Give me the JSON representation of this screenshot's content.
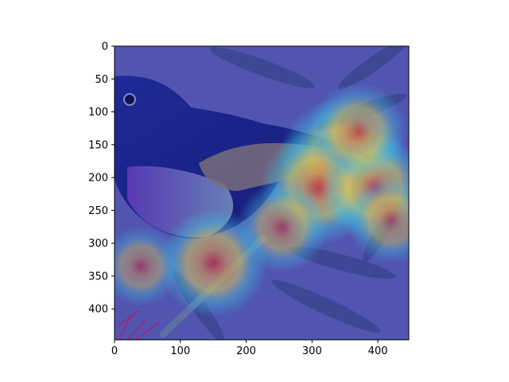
{
  "figure": {
    "kind": "image display with heatmap overlay (Grad-CAM style)",
    "background_scene": "bird perched on a branch among leaves, tinted blue",
    "overlay_colormap": "jet",
    "overlay_alpha": 0.5
  },
  "chart_data": {
    "type": "heatmap",
    "title": "",
    "xlabel": "",
    "ylabel": "",
    "xlim": [
      0,
      447
    ],
    "ylim": [
      447,
      0
    ],
    "x_ticks": [
      0,
      100,
      200,
      300,
      400
    ],
    "y_ticks": [
      0,
      50,
      100,
      150,
      200,
      250,
      300,
      350,
      400
    ],
    "x_tick_labels": [
      "0",
      "100",
      "200",
      "300",
      "400"
    ],
    "y_tick_labels": [
      "0",
      "50",
      "100",
      "150",
      "200",
      "250",
      "300",
      "350",
      "400"
    ],
    "grid": false,
    "legend": "none",
    "colors": {
      "low": "#3b3fbf",
      "mid_cyan": "#46e0e6",
      "mid_yellow": "#f2e64c",
      "high": "#e8231a"
    },
    "hotspots": [
      {
        "x": 345,
        "y": 175,
        "intensity": 1.0
      },
      {
        "x": 310,
        "y": 215,
        "intensity": 0.85
      },
      {
        "x": 395,
        "y": 215,
        "intensity": 0.75
      },
      {
        "x": 370,
        "y": 130,
        "intensity": 0.6
      },
      {
        "x": 150,
        "y": 330,
        "intensity": 0.75
      },
      {
        "x": 420,
        "y": 265,
        "intensity": 0.45
      },
      {
        "x": 255,
        "y": 275,
        "intensity": 0.5
      },
      {
        "x": 40,
        "y": 335,
        "intensity": 0.35
      }
    ]
  }
}
